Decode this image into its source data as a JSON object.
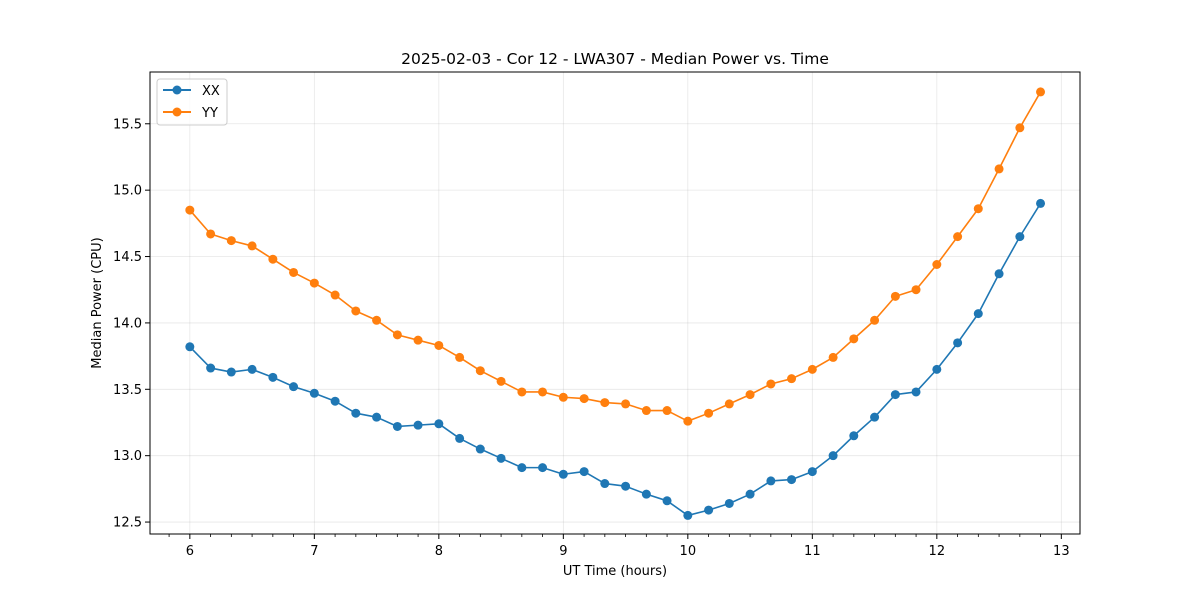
{
  "chart_data": {
    "type": "line",
    "title": "2025-02-03 - Cor 12 - LWA307 - Median Power vs. Time",
    "xlabel": "UT Time (hours)",
    "ylabel": "Median Power (CPU)",
    "xlim": [
      5.68,
      13.15
    ],
    "ylim": [
      12.41,
      15.89
    ],
    "xticks": [
      6,
      7,
      8,
      9,
      10,
      11,
      12,
      13
    ],
    "xtick_labels": [
      "6",
      "7",
      "8",
      "9",
      "10",
      "11",
      "12",
      "13"
    ],
    "yticks": [
      12.5,
      13.0,
      13.5,
      14.0,
      14.5,
      15.0,
      15.5
    ],
    "ytick_labels": [
      "12.5",
      "13.0",
      "13.5",
      "14.0",
      "14.5",
      "15.0",
      "15.5"
    ],
    "grid": true,
    "legend_position": "top-left",
    "x": [
      6.0,
      6.167,
      6.333,
      6.5,
      6.667,
      6.833,
      7.0,
      7.167,
      7.333,
      7.5,
      7.667,
      7.833,
      8.0,
      8.167,
      8.333,
      8.5,
      8.667,
      8.833,
      9.0,
      9.167,
      9.333,
      9.5,
      9.667,
      9.833,
      10.0,
      10.167,
      10.333,
      10.5,
      10.667,
      10.833,
      11.0,
      11.167,
      11.333,
      11.5,
      11.667,
      11.833,
      12.0,
      12.167,
      12.333,
      12.5,
      12.667,
      12.833
    ],
    "series": [
      {
        "name": "XX",
        "color": "#1f77b4",
        "values": [
          13.82,
          13.66,
          13.63,
          13.65,
          13.59,
          13.52,
          13.47,
          13.41,
          13.32,
          13.29,
          13.22,
          13.23,
          13.24,
          13.13,
          13.05,
          12.98,
          12.91,
          12.91,
          12.86,
          12.88,
          12.79,
          12.77,
          12.71,
          12.66,
          12.55,
          12.59,
          12.64,
          12.71,
          12.81,
          12.82,
          12.88,
          13.0,
          13.15,
          13.29,
          13.46,
          13.48,
          13.65,
          13.85,
          14.07,
          14.37,
          14.65,
          14.9
        ]
      },
      {
        "name": "YY",
        "color": "#ff7f0e",
        "values": [
          14.85,
          14.67,
          14.62,
          14.58,
          14.48,
          14.38,
          14.3,
          14.21,
          14.09,
          14.02,
          13.91,
          13.87,
          13.83,
          13.74,
          13.64,
          13.56,
          13.48,
          13.48,
          13.44,
          13.43,
          13.4,
          13.39,
          13.34,
          13.34,
          13.26,
          13.32,
          13.39,
          13.46,
          13.54,
          13.58,
          13.65,
          13.74,
          13.88,
          14.02,
          14.2,
          14.25,
          14.44,
          14.65,
          14.86,
          15.16,
          15.47,
          15.74
        ]
      }
    ]
  }
}
